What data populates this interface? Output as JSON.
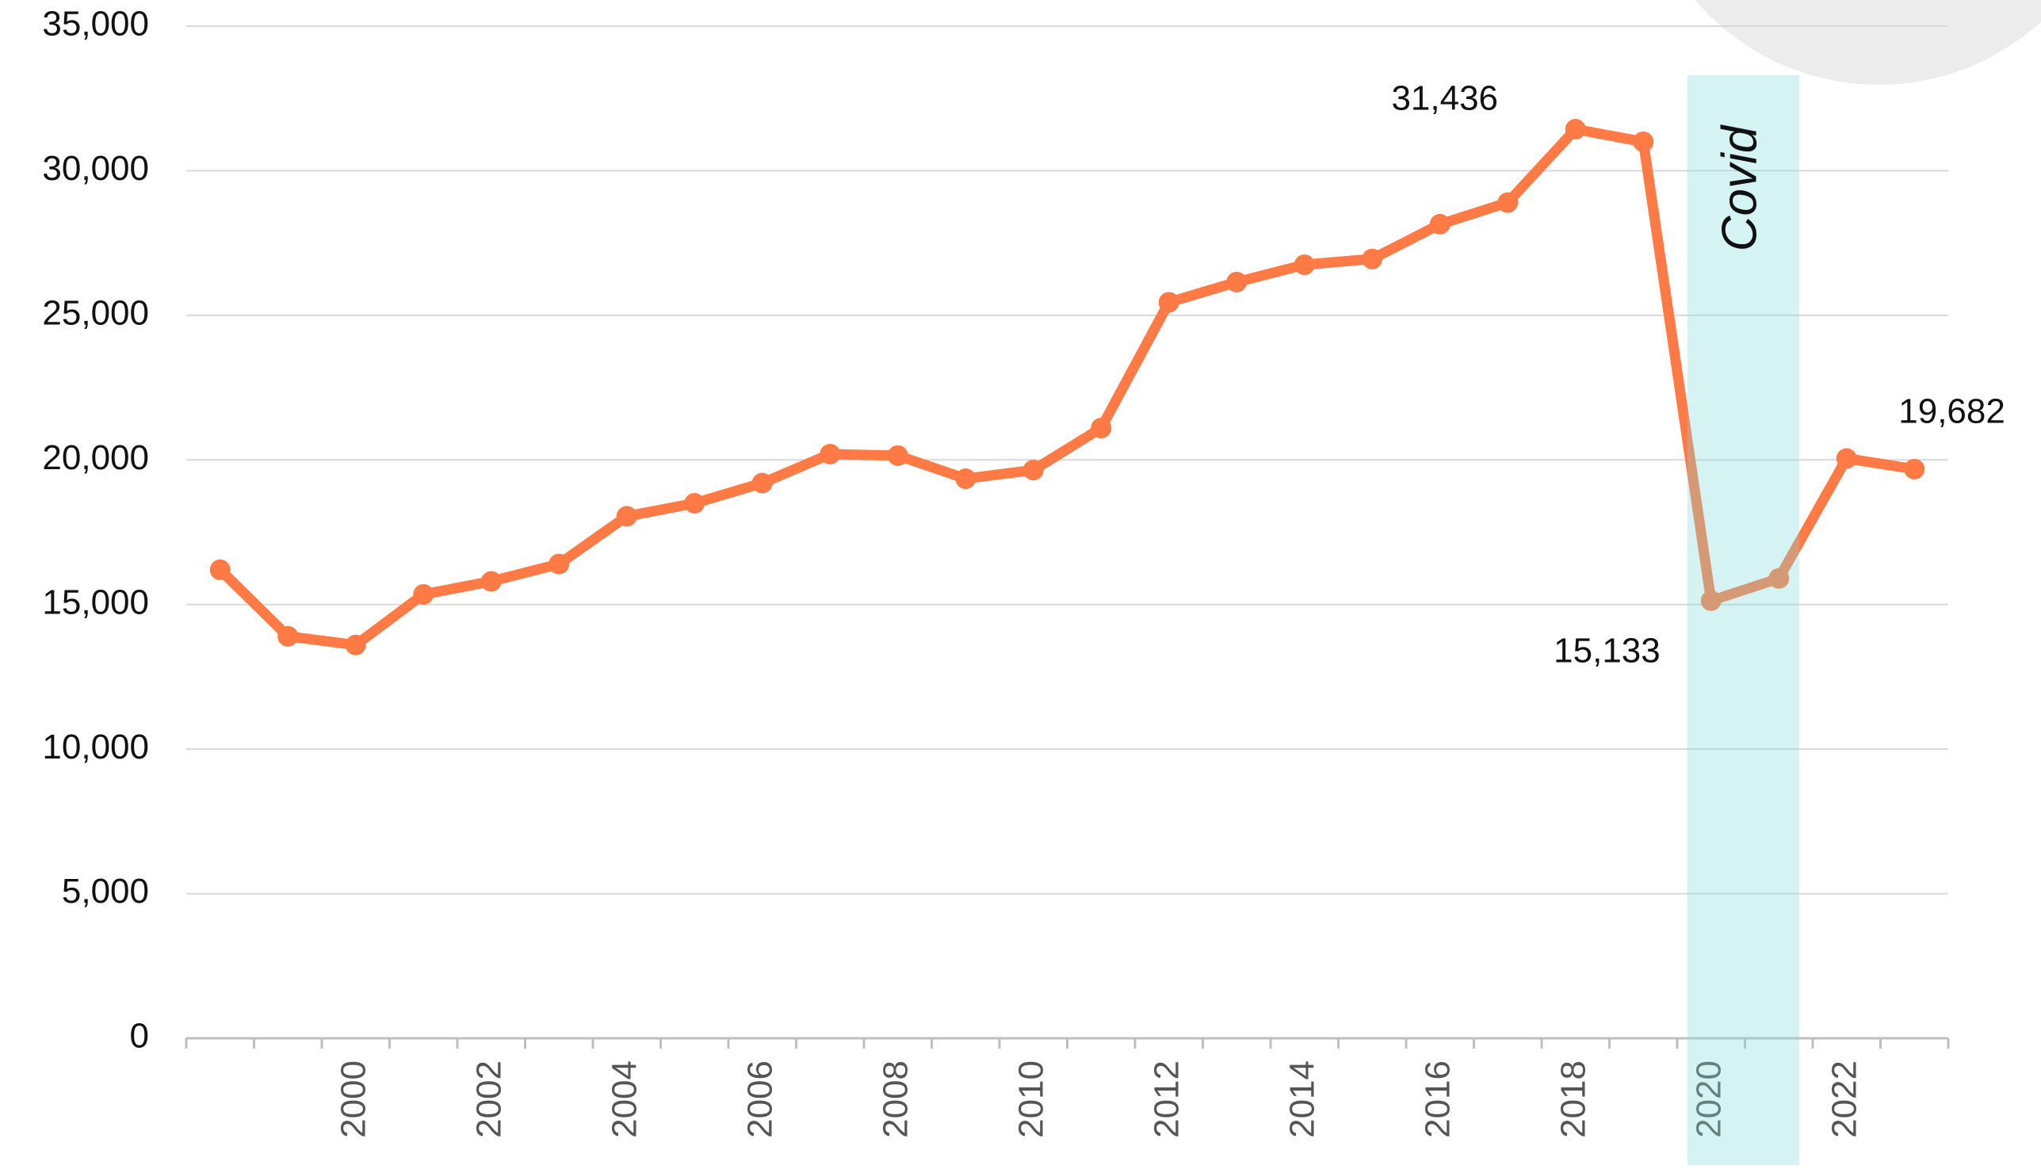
{
  "chart_data": {
    "type": "line",
    "categories": [
      null,
      null,
      "2000",
      null,
      "2002",
      null,
      "2004",
      null,
      "2006",
      null,
      "2008",
      null,
      "2010",
      null,
      "2012",
      null,
      "2014",
      null,
      "2016",
      null,
      "2018",
      null,
      "2020",
      null,
      "2022",
      null
    ],
    "series": [
      {
        "name": null,
        "color": "#ff7a45",
        "values": [
          16200,
          13900,
          13600,
          15350,
          15800,
          16400,
          18050,
          18500,
          19200,
          20200,
          20150,
          19350,
          19650,
          21100,
          25450,
          26150,
          26750,
          26950,
          28150,
          28900,
          31436,
          31000,
          15133,
          15900,
          20050,
          19682
        ],
        "value_labels": [
          null,
          null,
          null,
          null,
          null,
          null,
          null,
          null,
          null,
          null,
          null,
          null,
          null,
          null,
          null,
          null,
          null,
          null,
          null,
          null,
          "31,436",
          null,
          "15,133",
          null,
          null,
          "19,682"
        ]
      }
    ],
    "ylim": [
      0,
      35000
    ],
    "yticks": [
      0,
      {
        "value": 5000,
        "label": "5,000"
      },
      {
        "value": 10000,
        "label": "10,000"
      },
      {
        "value": 15000,
        "label": "15,000"
      },
      {
        "value": 20000,
        "label": "20,000"
      },
      {
        "value": 25000,
        "label": "25,000"
      },
      {
        "value": 30000,
        "label": "30,000"
      },
      {
        "value": 35000,
        "label": "35,000"
      }
    ],
    "grid": true,
    "highlight": {
      "label": "Covid",
      "start_index": 22,
      "end_index": 23,
      "color": "#7fdcd8"
    }
  }
}
